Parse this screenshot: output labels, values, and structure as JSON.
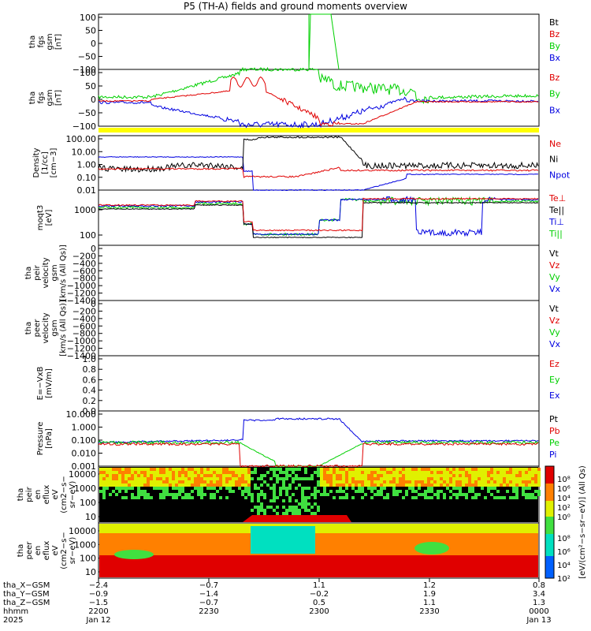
{
  "title": "P5 (TH-A) fields and ground moments overview",
  "colors": {
    "black": "#000000",
    "red": "#e00000",
    "green": "#00d000",
    "blue": "#0000e0",
    "yellow": "#ffff00"
  },
  "chart_data": [
    {
      "id": "fgs",
      "type": "line",
      "ylabel": [
        "tha",
        "fgs",
        "gsm",
        "[nT]"
      ],
      "ylim": [
        -100,
        100
      ],
      "ticks": [
        "100",
        "50",
        "0",
        "−50",
        "−100"
      ],
      "series": [
        {
          "name": "Bt",
          "color": "black"
        },
        {
          "name": "Bz",
          "color": "red"
        },
        {
          "name": "By",
          "color": "green"
        },
        {
          "name": "Bx",
          "color": "blue"
        }
      ]
    },
    {
      "id": "fgs_dsl",
      "type": "line",
      "ylabel": [
        "tha",
        "fgs",
        "gsm",
        "[nT]"
      ],
      "ylim": [
        -100,
        100
      ],
      "ticks": [
        "100",
        "50",
        "0",
        "−50",
        "−100"
      ],
      "series": [
        {
          "name": "Bz",
          "color": "red"
        },
        {
          "name": "By",
          "color": "green"
        },
        {
          "name": "Bx",
          "color": "blue"
        }
      ]
    },
    {
      "id": "density",
      "type": "line",
      "ylabel": [
        "Density",
        "[1/cc]",
        "[cm−3]"
      ],
      "scale": "log",
      "ylim": [
        0.005,
        200
      ],
      "ticks": [
        "100.00",
        "10.00",
        "1.00",
        "0.10",
        "0.01"
      ],
      "series": [
        {
          "name": "Ne",
          "color": "red"
        },
        {
          "name": "Ni",
          "color": "black"
        },
        {
          "name": "Npot",
          "color": "blue"
        }
      ]
    },
    {
      "id": "temp",
      "type": "line",
      "ylabel": [
        "moqt3",
        "[eV]"
      ],
      "scale": "log",
      "ylim": [
        40,
        3000
      ],
      "ticks": [
        "1000",
        "100"
      ],
      "series": [
        {
          "name": "Te⊥",
          "color": "red"
        },
        {
          "name": "Te||",
          "color": "black"
        },
        {
          "name": "Ti⊥",
          "color": "blue"
        },
        {
          "name": "Ti||",
          "color": "green"
        }
      ]
    },
    {
      "id": "peir_vel",
      "type": "line",
      "ylabel": [
        "tha",
        "peir",
        "velocity",
        "gsm",
        "[km/s (All Qs)]"
      ],
      "ylim": [
        -1400,
        0
      ],
      "ticks": [
        "0",
        "−200",
        "−400",
        "−600",
        "−800",
        "−1000",
        "−1200",
        "−1400"
      ],
      "series": [
        {
          "name": "Vt",
          "color": "black"
        },
        {
          "name": "Vz",
          "color": "red"
        },
        {
          "name": "Vy",
          "color": "green"
        },
        {
          "name": "Vx",
          "color": "blue"
        }
      ]
    },
    {
      "id": "peer_vel",
      "type": "line",
      "ylabel": [
        "tha",
        "peer",
        "velocity",
        "gsm",
        "[km/s (All Qs)]"
      ],
      "ylim": [
        -1400,
        0
      ],
      "ticks": [
        "0",
        "−200",
        "−400",
        "−600",
        "−800",
        "−1000",
        "−1200",
        "−1400"
      ],
      "series": [
        {
          "name": "Vt",
          "color": "black"
        },
        {
          "name": "Vz",
          "color": "red"
        },
        {
          "name": "Vy",
          "color": "green"
        },
        {
          "name": "Vx",
          "color": "blue"
        }
      ]
    },
    {
      "id": "efield",
      "type": "line",
      "ylabel": [
        "E=−VxB",
        "[mV/m]"
      ],
      "ylim": [
        0,
        1
      ],
      "ticks": [
        "1.0",
        "0.8",
        "0.6",
        "0.4",
        "0.2",
        "0.0"
      ],
      "series": [
        {
          "name": "Ez",
          "color": "red"
        },
        {
          "name": "Ey",
          "color": "green"
        },
        {
          "name": "Ex",
          "color": "blue"
        }
      ]
    },
    {
      "id": "pressure",
      "type": "line",
      "ylabel": [
        "Pressure",
        "[nPa]"
      ],
      "scale": "log",
      "ylim": [
        0.0005,
        30
      ],
      "ticks": [
        "10.000",
        "1.000",
        "0.100",
        "0.010",
        "0.001"
      ],
      "series": [
        {
          "name": "Pt",
          "color": "black"
        },
        {
          "name": "Pb",
          "color": "red"
        },
        {
          "name": "Pe",
          "color": "green"
        },
        {
          "name": "Pi",
          "color": "blue"
        }
      ]
    },
    {
      "id": "peir_spec",
      "type": "heatmap",
      "ylabel": [
        "tha",
        "peir",
        "en",
        "eflux",
        "eV",
        "(cm2−s−",
        "sr−eV)"
      ],
      "ticks": [
        "10000",
        "1000",
        "100",
        "10"
      ]
    },
    {
      "id": "peer_spec",
      "type": "heatmap",
      "ylabel": [
        "tha",
        "peer",
        "en",
        "eflux",
        "eV",
        "(cm2−s−",
        "sr−eV)"
      ],
      "ticks": [
        "10000",
        "1000",
        "100",
        "10"
      ]
    }
  ],
  "colorbar": {
    "label": "[eV/(cm²−s−sr−eV)] (All Qs)",
    "ticks_upper": [
      "10⁸",
      "10⁶",
      "10⁴",
      "10²",
      "10⁰"
    ],
    "ticks_lower": [
      "10⁸",
      "10⁶",
      "10⁴",
      "10²"
    ]
  },
  "xaxis": {
    "row_labels": [
      "tha_X−GSM",
      "tha_Y−GSM",
      "tha_Z−GSM",
      "hhmm",
      "2025"
    ],
    "columns": [
      {
        "X": "−2.4",
        "Y": "−0.9",
        "Z": "−1.5",
        "hhmm": "2200",
        "date": "Jan 12"
      },
      {
        "X": "−0.7",
        "Y": "−1.4",
        "Z": "−0.7",
        "hhmm": "2230",
        "date": ""
      },
      {
        "X": "1.1",
        "Y": "−0.2",
        "Z": "0.5",
        "hhmm": "2300",
        "date": ""
      },
      {
        "X": "1.2",
        "Y": "1.9",
        "Z": "1.1",
        "hhmm": "2330",
        "date": ""
      },
      {
        "X": "0.8",
        "Y": "3.4",
        "Z": "1.3",
        "hhmm": "0000",
        "date": "Jan 13"
      }
    ]
  }
}
